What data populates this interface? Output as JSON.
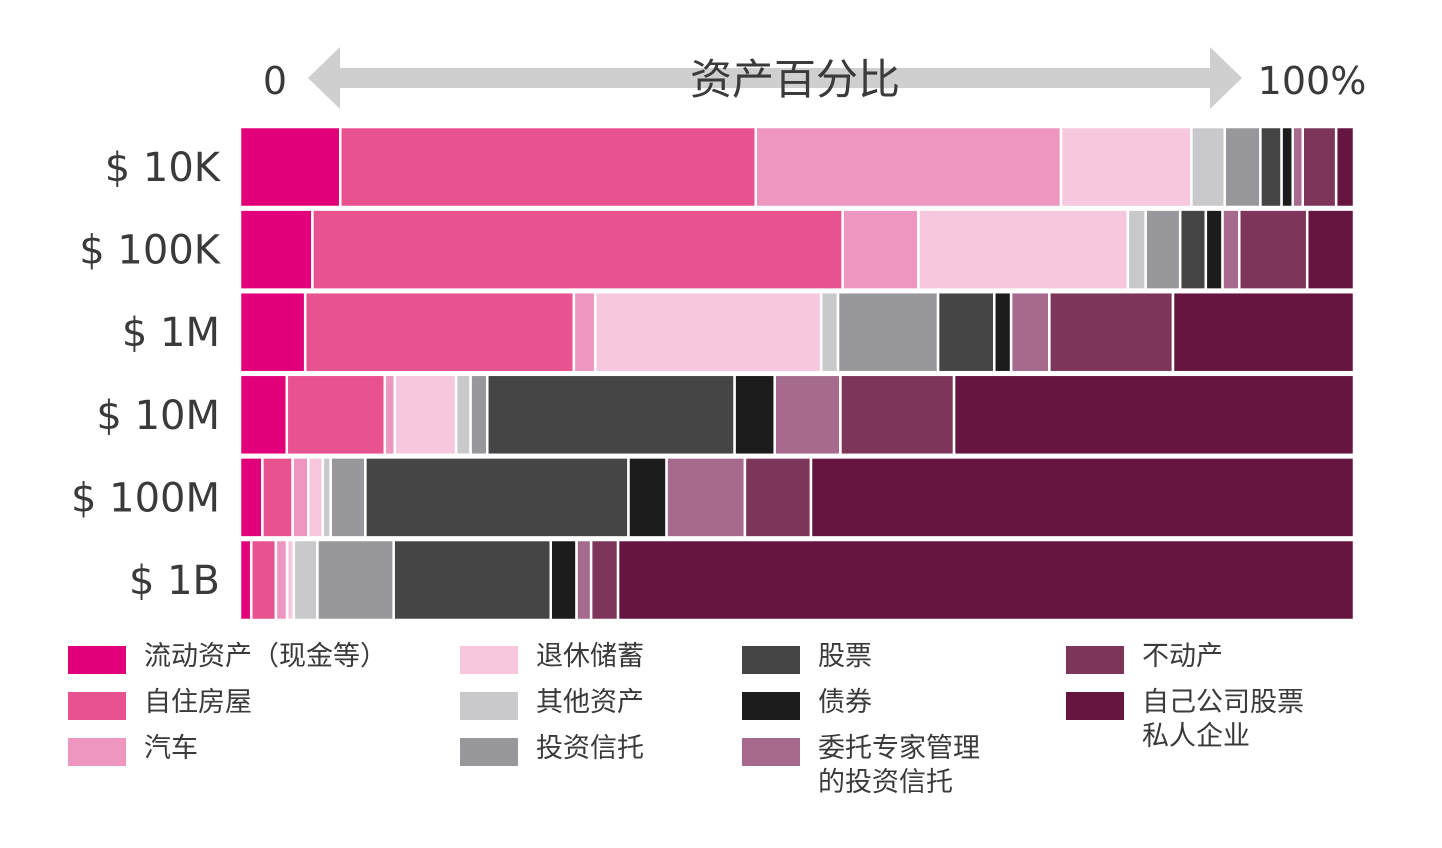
{
  "chart_data": {
    "type": "bar",
    "orientation": "horizontal",
    "stacked": true,
    "normalized": true,
    "axis": {
      "left_label": "0",
      "right_label": "100%",
      "title": "资产百分比"
    },
    "categories": [
      "$ 10K",
      "$ 100K",
      "$ 1M",
      "$ 10M",
      "$ 100M",
      "$ 1B"
    ],
    "xlim": [
      0,
      100
    ],
    "series": [
      {
        "name": "流动资产（现金等）",
        "color": "#e2007a",
        "values": [
          9,
          6.5,
          5.8,
          4.2,
          2,
          1
        ]
      },
      {
        "name": "自住房屋",
        "color": "#e8528f",
        "values": [
          37.3,
          47.6,
          23.9,
          8.8,
          2.7,
          2.2
        ]
      },
      {
        "name": "汽车",
        "color": "#ee96bf",
        "values": [
          27.4,
          6.8,
          1.9,
          0.9,
          1.4,
          1
        ]
      },
      {
        "name": "退休储蓄",
        "color": "#f6c7dd",
        "values": [
          11.7,
          18.8,
          20.1,
          5.5,
          1.3,
          0.6
        ]
      },
      {
        "name": "其他资产",
        "color": "#c9c9cb",
        "values": [
          3,
          1.6,
          1.5,
          1.3,
          0.7,
          2.1
        ]
      },
      {
        "name": "投资信托",
        "color": "#98989c",
        "values": [
          3.2,
          3.1,
          8.9,
          1.5,
          3.1,
          6.8
        ]
      },
      {
        "name": "股票",
        "color": "#454545",
        "values": [
          1.9,
          2.3,
          5,
          22.2,
          23.5,
          14
        ]
      },
      {
        "name": "债券",
        "color": "#1c1c1c",
        "values": [
          1,
          1.5,
          1.5,
          3.6,
          3.4,
          2.3
        ]
      },
      {
        "name": "委托专家管理的投资信托",
        "color": "#a56a8c",
        "values": [
          0.9,
          1.5,
          3.4,
          5.9,
          7,
          1.3
        ]
      },
      {
        "name": "不动产",
        "color": "#7d3559",
        "values": [
          3,
          6.1,
          11,
          10.2,
          5.9,
          2.4
        ]
      },
      {
        "name": "自己公司股票私人企业",
        "color": "#651540",
        "values": [
          1.6,
          4.2,
          16.1,
          35.9,
          48.5,
          65.6
        ]
      }
    ]
  },
  "legend": [
    {
      "lines": [
        "流动资产（现金等）"
      ],
      "color": "#e2007a"
    },
    {
      "lines": [
        "自住房屋"
      ],
      "color": "#e8528f"
    },
    {
      "lines": [
        "汽车"
      ],
      "color": "#ee96bf"
    },
    {
      "lines": [
        "退休储蓄"
      ],
      "color": "#f6c7dd"
    },
    {
      "lines": [
        "其他资产"
      ],
      "color": "#c9c9cb"
    },
    {
      "lines": [
        "投资信托"
      ],
      "color": "#98989c"
    },
    {
      "lines": [
        "股票"
      ],
      "color": "#454545"
    },
    {
      "lines": [
        "债券"
      ],
      "color": "#1c1c1c"
    },
    {
      "lines": [
        "委托专家管理",
        "的投资信托"
      ],
      "color": "#a56a8c"
    },
    {
      "lines": [
        "不动产"
      ],
      "color": "#7d3559"
    },
    {
      "lines": [
        "自己公司股票",
        "私人企业"
      ],
      "color": "#651540"
    }
  ]
}
